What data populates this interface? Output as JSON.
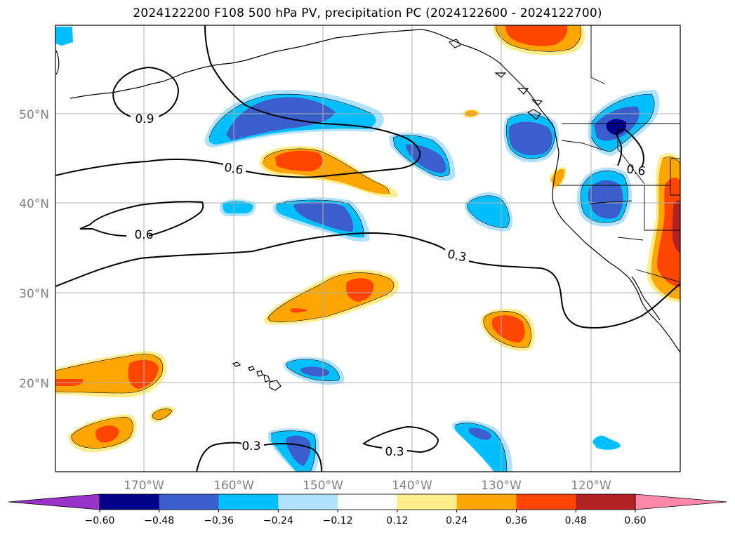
{
  "title": "2024122200 F108 500 hPa PV, precipitation PC (2024122600 - 2024122700)",
  "map": {
    "latitude_labels": [
      "50°N",
      "40°N",
      "30°N",
      "20°N"
    ],
    "longitude_labels": [
      "170°W",
      "160°W",
      "150°W",
      "140°W",
      "130°W",
      "120°W"
    ],
    "pv_contour_labels": [
      "0.9",
      "0.6",
      "0.6",
      "0.3",
      "0.6",
      "0.3",
      "0.3"
    ],
    "gridlines": true,
    "coastline_color": "#000000"
  },
  "colorbar": {
    "orientation": "horizontal",
    "extend": "both",
    "tick_labels": [
      "−0.60",
      "−0.48",
      "−0.36",
      "−0.24",
      "−0.12",
      "0.12",
      "0.24",
      "0.36",
      "0.48",
      "0.60"
    ],
    "colors": [
      "#9933cc",
      "#00008b",
      "#3a5fcd",
      "#00bfff",
      "#b0e2ff",
      "#ffffff",
      "#ffec8b",
      "#ffa500",
      "#ff4500",
      "#b22222",
      "#ff88aa"
    ]
  }
}
